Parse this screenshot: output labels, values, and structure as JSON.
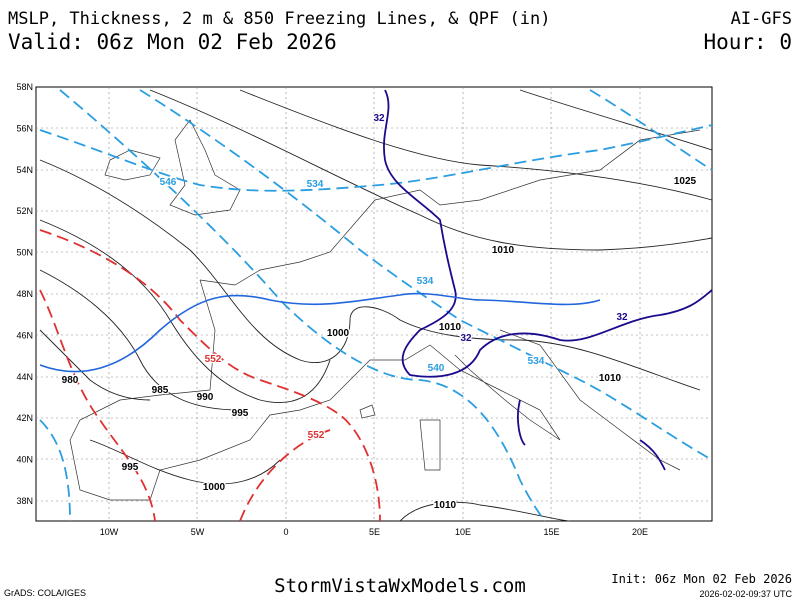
{
  "header": {
    "title": "MSLP, Thickness, 2 m & 850 Freezing Lines, & QPF (in)",
    "valid": "Valid: 06z Mon 02 Feb 2026",
    "model": "AI-GFS",
    "hour": "Hour: 0"
  },
  "map": {
    "lat_labels": [
      "58N",
      "56N",
      "54N",
      "52N",
      "50N",
      "48N",
      "46N",
      "44N",
      "42N",
      "40N",
      "38N"
    ],
    "lon_labels": [
      "10W",
      "5W",
      "0",
      "5E",
      "10E",
      "15E",
      "20E"
    ],
    "contour_labels": [
      {
        "text": "32",
        "color": "#1a0a8c"
      },
      {
        "text": "546",
        "color": "#2a9ee0"
      },
      {
        "text": "534",
        "color": "#2a9ee0"
      },
      {
        "text": "1025",
        "color": "#000000"
      },
      {
        "text": "1010",
        "color": "#000000"
      },
      {
        "text": "534",
        "color": "#2a9ee0"
      },
      {
        "text": "1010",
        "color": "#000000"
      },
      {
        "text": "32",
        "color": "#1a0a8c"
      },
      {
        "text": "32",
        "color": "#1a0a8c"
      },
      {
        "text": "1000",
        "color": "#000000"
      },
      {
        "text": "552",
        "color": "#e03030"
      },
      {
        "text": "540",
        "color": "#2a9ee0"
      },
      {
        "text": "534",
        "color": "#2a9ee0"
      },
      {
        "text": "980",
        "color": "#000000"
      },
      {
        "text": "985",
        "color": "#000000"
      },
      {
        "text": "990",
        "color": "#000000"
      },
      {
        "text": "1010",
        "color": "#000000"
      },
      {
        "text": "995",
        "color": "#000000"
      },
      {
        "text": "552",
        "color": "#e03030"
      },
      {
        "text": "995",
        "color": "#000000"
      },
      {
        "text": "1000",
        "color": "#000000"
      },
      {
        "text": "1010",
        "color": "#000000"
      }
    ]
  },
  "footer": {
    "grads": "GrADS: COLA/IGES",
    "site": "StormVistaWxModels.com",
    "init": "Init: 06z Mon 02 Feb 2026",
    "stamp": "2026-02-02-09:37 UTC"
  }
}
